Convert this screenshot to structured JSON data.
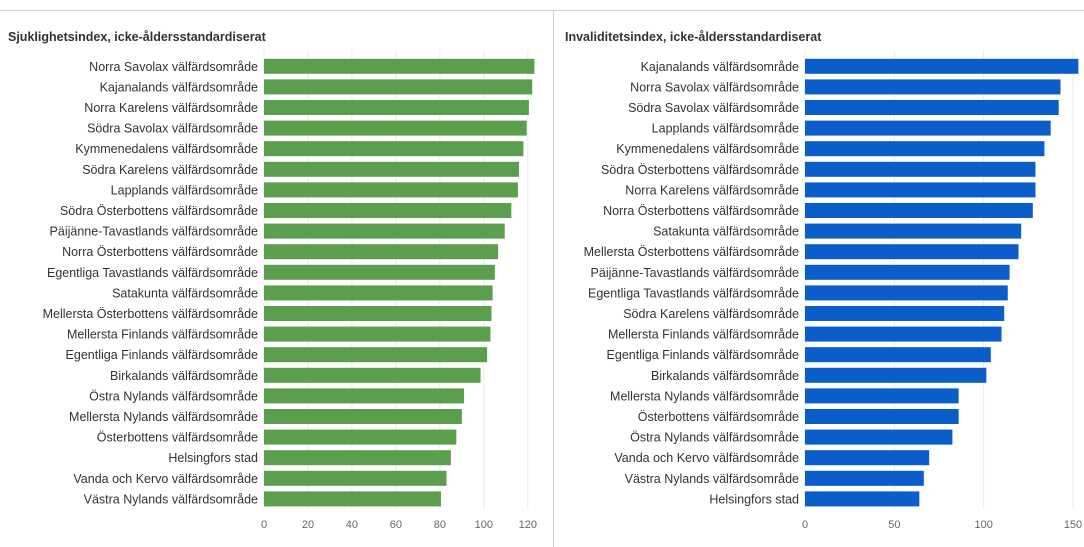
{
  "chart_data": [
    {
      "type": "bar",
      "orientation": "horizontal",
      "title": "Sjuklighetsindex, icke-åldersstandardiserat",
      "color": "#5b9e4d",
      "xlim": [
        0,
        126
      ],
      "ticks": [
        "0",
        "20",
        "40",
        "60",
        "80",
        "100",
        "120"
      ],
      "tick_values": [
        0,
        20,
        40,
        60,
        80,
        100,
        120
      ],
      "categories": [
        "Norra Savolax välfärdsområde",
        "Kajanalands välfärdsområde",
        "Norra Karelens välfärdsområde",
        "Södra Savolax välfärdsområde",
        "Kymmenedalens välfärdsområde",
        "Södra Karelens välfärdsområde",
        "Lapplands välfärdsområde",
        "Södra Österbottens välfärdsområde",
        "Päijänne-Tavastlands välfärdsområde",
        "Norra Österbottens välfärdsområde",
        "Egentliga Tavastlands välfärdsområde",
        "Satakunta välfärdsområde",
        "Mellersta Österbottens välfärdsområde",
        "Mellersta Finlands välfärdsområde",
        "Egentliga Finlands välfärdsområde",
        "Birkalands välfärdsområde",
        "Östra Nylands välfärdsområde",
        "Mellersta Nylands välfärdsområde",
        "Österbottens välfärdsområde",
        "Helsingfors stad",
        "Vanda och Kervo välfärdsområde",
        "Västra Nylands välfärdsområde"
      ],
      "values": [
        123,
        122,
        120.5,
        119.5,
        118,
        116,
        115.5,
        112.5,
        109.5,
        106.5,
        105,
        104,
        103.5,
        103,
        101.5,
        98.5,
        91,
        90,
        87.5,
        85,
        83,
        80.5
      ]
    },
    {
      "type": "bar",
      "orientation": "horizontal",
      "title": "Invaliditetsindex, icke-åldersstandardiserat",
      "color": "#0b5ec9",
      "xlim": [
        0,
        150
      ],
      "ticks": [
        "0",
        "50",
        "100",
        "150"
      ],
      "tick_values": [
        0,
        50,
        100,
        150
      ],
      "categories": [
        "Kajanalands välfärdsområde",
        "Norra Savolax välfärdsområde",
        "Södra Savolax välfärdsområde",
        "Lapplands välfärdsområde",
        "Kymmenedalens välfärdsområde",
        "Södra Österbottens välfärdsområde",
        "Norra Karelens välfärdsområde",
        "Norra Österbottens välfärdsområde",
        "Satakunta välfärdsområde",
        "Mellersta Österbottens välfärdsområde",
        "Päijänne-Tavastlands välfärdsområde",
        "Egentliga Tavastlands välfärdsområde",
        "Södra Karelens välfärdsområde",
        "Mellersta Finlands välfärdsområde",
        "Egentliga Finlands välfärdsområde",
        "Birkalands välfärdsområde",
        "Mellersta Nylands välfärdsområde",
        "Österbottens välfärdsområde",
        "Östra Nylands välfärdsområde",
        "Vanda och Kervo välfärdsområde",
        "Västra Nylands välfärdsområde",
        "Helsingfors stad"
      ],
      "values": [
        153,
        143,
        142,
        137.5,
        134,
        129,
        129,
        127.5,
        121,
        119.5,
        114.5,
        113.5,
        111.5,
        110,
        104,
        101.5,
        86,
        86,
        82.5,
        69.5,
        66.5,
        64
      ]
    }
  ]
}
